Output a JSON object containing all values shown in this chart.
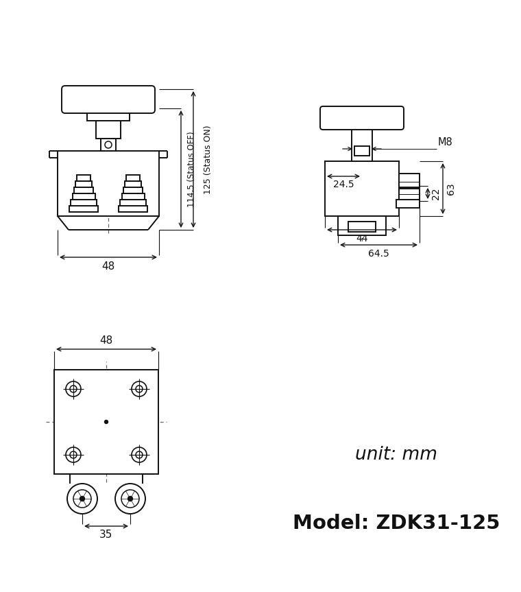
{
  "bg_color": "#ffffff",
  "line_color": "#111111",
  "dash_color": "#666666",
  "title": "Model: ZDK31-125",
  "unit_text": "unit: mm",
  "dims": {
    "front_height_off": "114,5 (Status OFF)",
    "front_height_on": "125 (Status ON)",
    "front_width": "48",
    "side_top_width": "24.5",
    "side_bolt": "M8",
    "side_height_22": "22",
    "side_height_63": "63",
    "side_width_44": "44",
    "side_width_645": "64.5",
    "bottom_width": "35"
  }
}
